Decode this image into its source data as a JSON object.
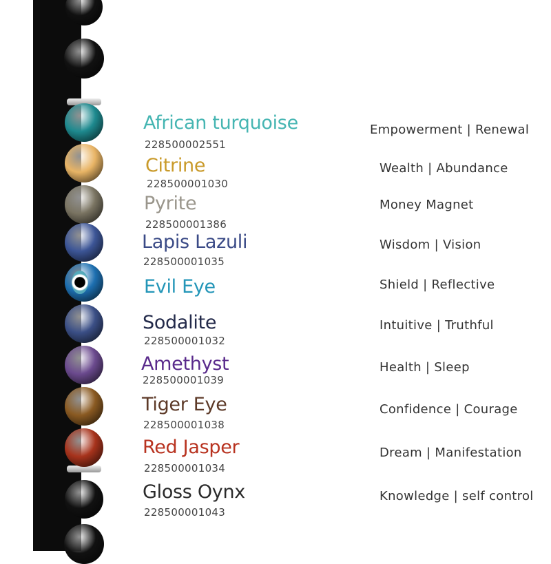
{
  "stones": [
    {
      "name": "African turquoise",
      "code": "228500002551",
      "property": "Empowerment | Renewal",
      "color": "#45b5b2",
      "bead": "#1e8a8f"
    },
    {
      "name": "Citrine",
      "code": "228500001030",
      "property": "Wealth | Abundance",
      "color": "#c99a2a",
      "bead": "#e8b465"
    },
    {
      "name": "Pyrite",
      "code": "228500001386",
      "property": "Money Magnet",
      "color": "#9a968c",
      "bead": "#7a7462"
    },
    {
      "name": "Lapis Lazuli",
      "code": "228500001035",
      "property": "Wisdom | Vision",
      "color": "#3a4a86",
      "bead": "#3c5596"
    },
    {
      "name": "Evil Eye",
      "code": "",
      "property": "Shield | Reflective",
      "color": "#2496b8",
      "bead": "#1d6fb0"
    },
    {
      "name": "Sodalite",
      "code": "228500001032",
      "property": "Intuitive | Truthful",
      "color": "#232a4a",
      "bead": "#3b4f86"
    },
    {
      "name": "Amethyst",
      "code": "228500001039",
      "property": "Health | Sleep",
      "color": "#5a2b8c",
      "bead": "#6b4a8e"
    },
    {
      "name": "Tiger Eye",
      "code": "228500001038",
      "property": "Confidence | Courage",
      "color": "#5d3a28",
      "bead": "#8a5a22"
    },
    {
      "name": "Red Jasper",
      "code": "228500001034",
      "property": "Dream | Manifestation",
      "color": "#b83320",
      "bead": "#a7331c"
    },
    {
      "name": "Gloss Oynx",
      "code": "228500001043",
      "property": "Knowledge | self control",
      "color": "#2a2a2a",
      "bead": "#111111"
    }
  ]
}
